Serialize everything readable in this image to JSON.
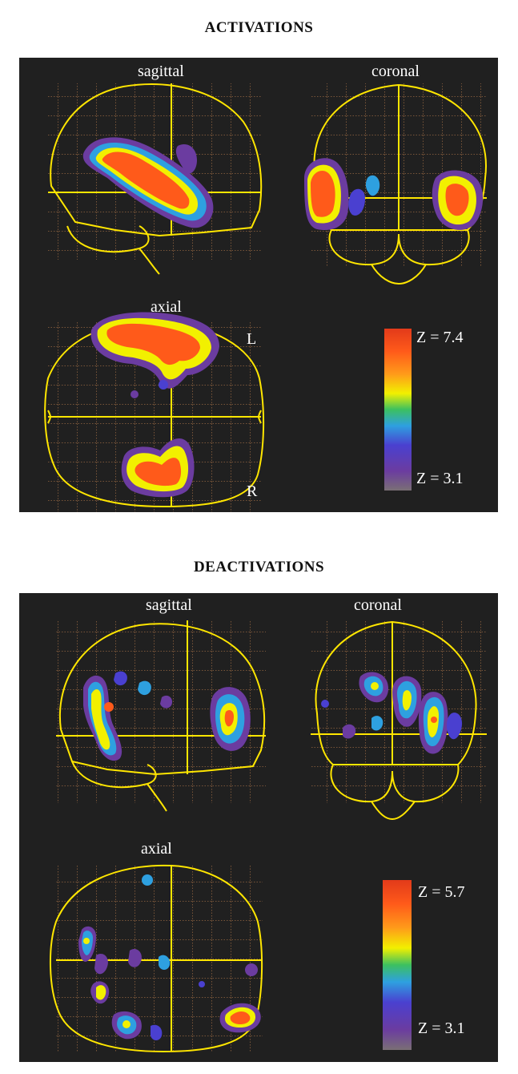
{
  "activations": {
    "title": "ACTIVATIONS",
    "views": {
      "sagittal": "sagittal",
      "coronal": "coronal",
      "axial": "axial"
    },
    "side_labels": {
      "left": "L",
      "right": "R"
    },
    "colorbar": {
      "max_label": "Z = 7.4",
      "min_label": "Z = 3.1"
    }
  },
  "deactivations": {
    "title": "DEACTIVATIONS",
    "views": {
      "sagittal": "sagittal",
      "coronal": "coronal",
      "axial": "axial"
    },
    "colorbar": {
      "max_label": "Z = 5.7",
      "min_label": "Z = 3.1"
    }
  },
  "colors": {
    "background": "#202020",
    "grid": "#d08a52",
    "outline": "#ffe600",
    "activation_scale": [
      "#7a6f75",
      "#6b3ca0",
      "#4a40d0",
      "#2ea0e0",
      "#3cc060",
      "#f2f000",
      "#ff9a1a",
      "#ff5a1a",
      "#e23a1a"
    ]
  }
}
